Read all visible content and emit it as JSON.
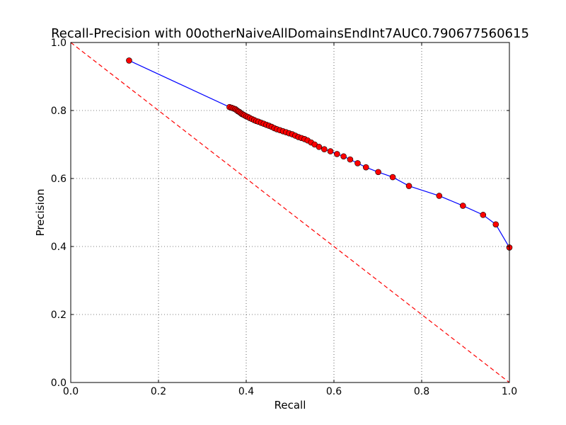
{
  "chart_data": {
    "type": "line",
    "title": "Recall-Precision with 00otherNaiveAllDomainsEndInt7AUC0.790677560615",
    "xlabel": "Recall",
    "ylabel": "Precision",
    "xlim": [
      0.0,
      1.0
    ],
    "ylim": [
      0.0,
      1.0
    ],
    "xticks": [
      "0.0",
      "0.2",
      "0.4",
      "0.6",
      "0.8",
      "1.0"
    ],
    "yticks": [
      "0.0",
      "0.2",
      "0.4",
      "0.6",
      "0.8",
      "1.0"
    ],
    "grid": true,
    "legend": "none",
    "series": [
      {
        "style": "solid line with circle markers",
        "line_color": "#0000ff",
        "marker_color": "#ff0000",
        "points": [
          [
            0.133,
            0.947
          ],
          [
            0.362,
            0.81
          ],
          [
            0.367,
            0.808
          ],
          [
            0.371,
            0.806
          ],
          [
            0.375,
            0.804
          ],
          [
            0.378,
            0.801
          ],
          [
            0.381,
            0.798
          ],
          [
            0.384,
            0.796
          ],
          [
            0.387,
            0.793
          ],
          [
            0.39,
            0.79
          ],
          [
            0.393,
            0.788
          ],
          [
            0.396,
            0.786
          ],
          [
            0.4,
            0.783
          ],
          [
            0.404,
            0.781
          ],
          [
            0.408,
            0.778
          ],
          [
            0.413,
            0.775
          ],
          [
            0.418,
            0.772
          ],
          [
            0.423,
            0.769
          ],
          [
            0.428,
            0.767
          ],
          [
            0.434,
            0.764
          ],
          [
            0.44,
            0.761
          ],
          [
            0.446,
            0.758
          ],
          [
            0.452,
            0.755
          ],
          [
            0.458,
            0.752
          ],
          [
            0.464,
            0.748
          ],
          [
            0.47,
            0.745
          ],
          [
            0.477,
            0.742
          ],
          [
            0.484,
            0.739
          ],
          [
            0.491,
            0.736
          ],
          [
            0.498,
            0.733
          ],
          [
            0.505,
            0.73
          ],
          [
            0.512,
            0.726
          ],
          [
            0.519,
            0.722
          ],
          [
            0.526,
            0.719
          ],
          [
            0.533,
            0.716
          ],
          [
            0.54,
            0.712
          ],
          [
            0.548,
            0.706
          ],
          [
            0.556,
            0.7
          ],
          [
            0.566,
            0.693
          ],
          [
            0.578,
            0.686
          ],
          [
            0.592,
            0.68
          ],
          [
            0.607,
            0.672
          ],
          [
            0.622,
            0.665
          ],
          [
            0.637,
            0.656
          ],
          [
            0.654,
            0.645
          ],
          [
            0.673,
            0.633
          ],
          [
            0.701,
            0.619
          ],
          [
            0.734,
            0.604
          ],
          [
            0.771,
            0.578
          ],
          [
            0.84,
            0.549
          ],
          [
            0.894,
            0.52
          ],
          [
            0.94,
            0.493
          ],
          [
            0.969,
            0.465
          ],
          [
            1.0,
            0.397
          ]
        ]
      },
      {
        "style": "dashed line",
        "line_color": "#ff0000",
        "points": [
          [
            0.0,
            1.0
          ],
          [
            1.0,
            0.0
          ]
        ]
      }
    ]
  }
}
